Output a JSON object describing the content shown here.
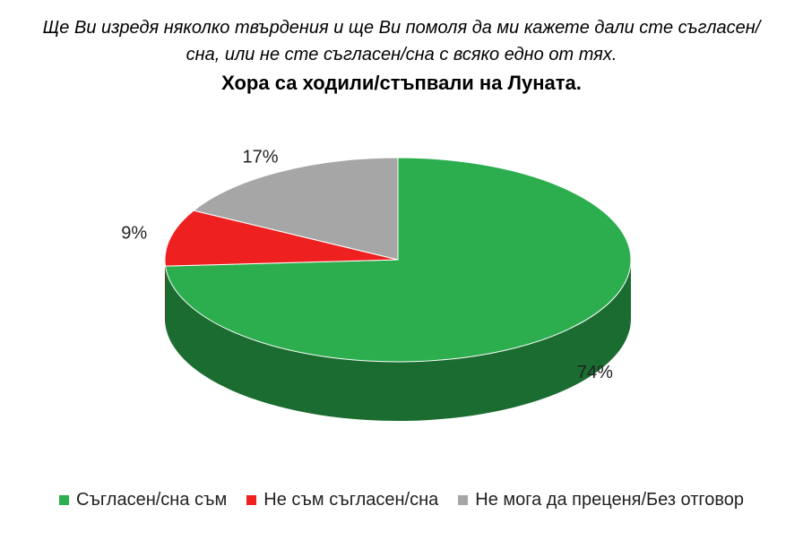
{
  "chart_data": {
    "type": "pie",
    "subtitle": "Ще Ви изредя няколко твърдения и ще Ви помоля да ми кажете дали сте съгласен/сна, или не сте съгласен/сна с всяко едно от тях.",
    "title": "Хора са ходили/стъпвали на Луната.",
    "categories": [
      "Съгласен/сна съм",
      "Не съм съгласен/сна",
      "Не мога да преценя/Без отговор"
    ],
    "values": [
      74,
      9,
      17
    ],
    "value_labels": [
      "74%",
      "9%",
      "17%"
    ],
    "colors": [
      "#2cae4e",
      "#ee2020",
      "#a6a6a6"
    ],
    "legend": "bottom"
  }
}
